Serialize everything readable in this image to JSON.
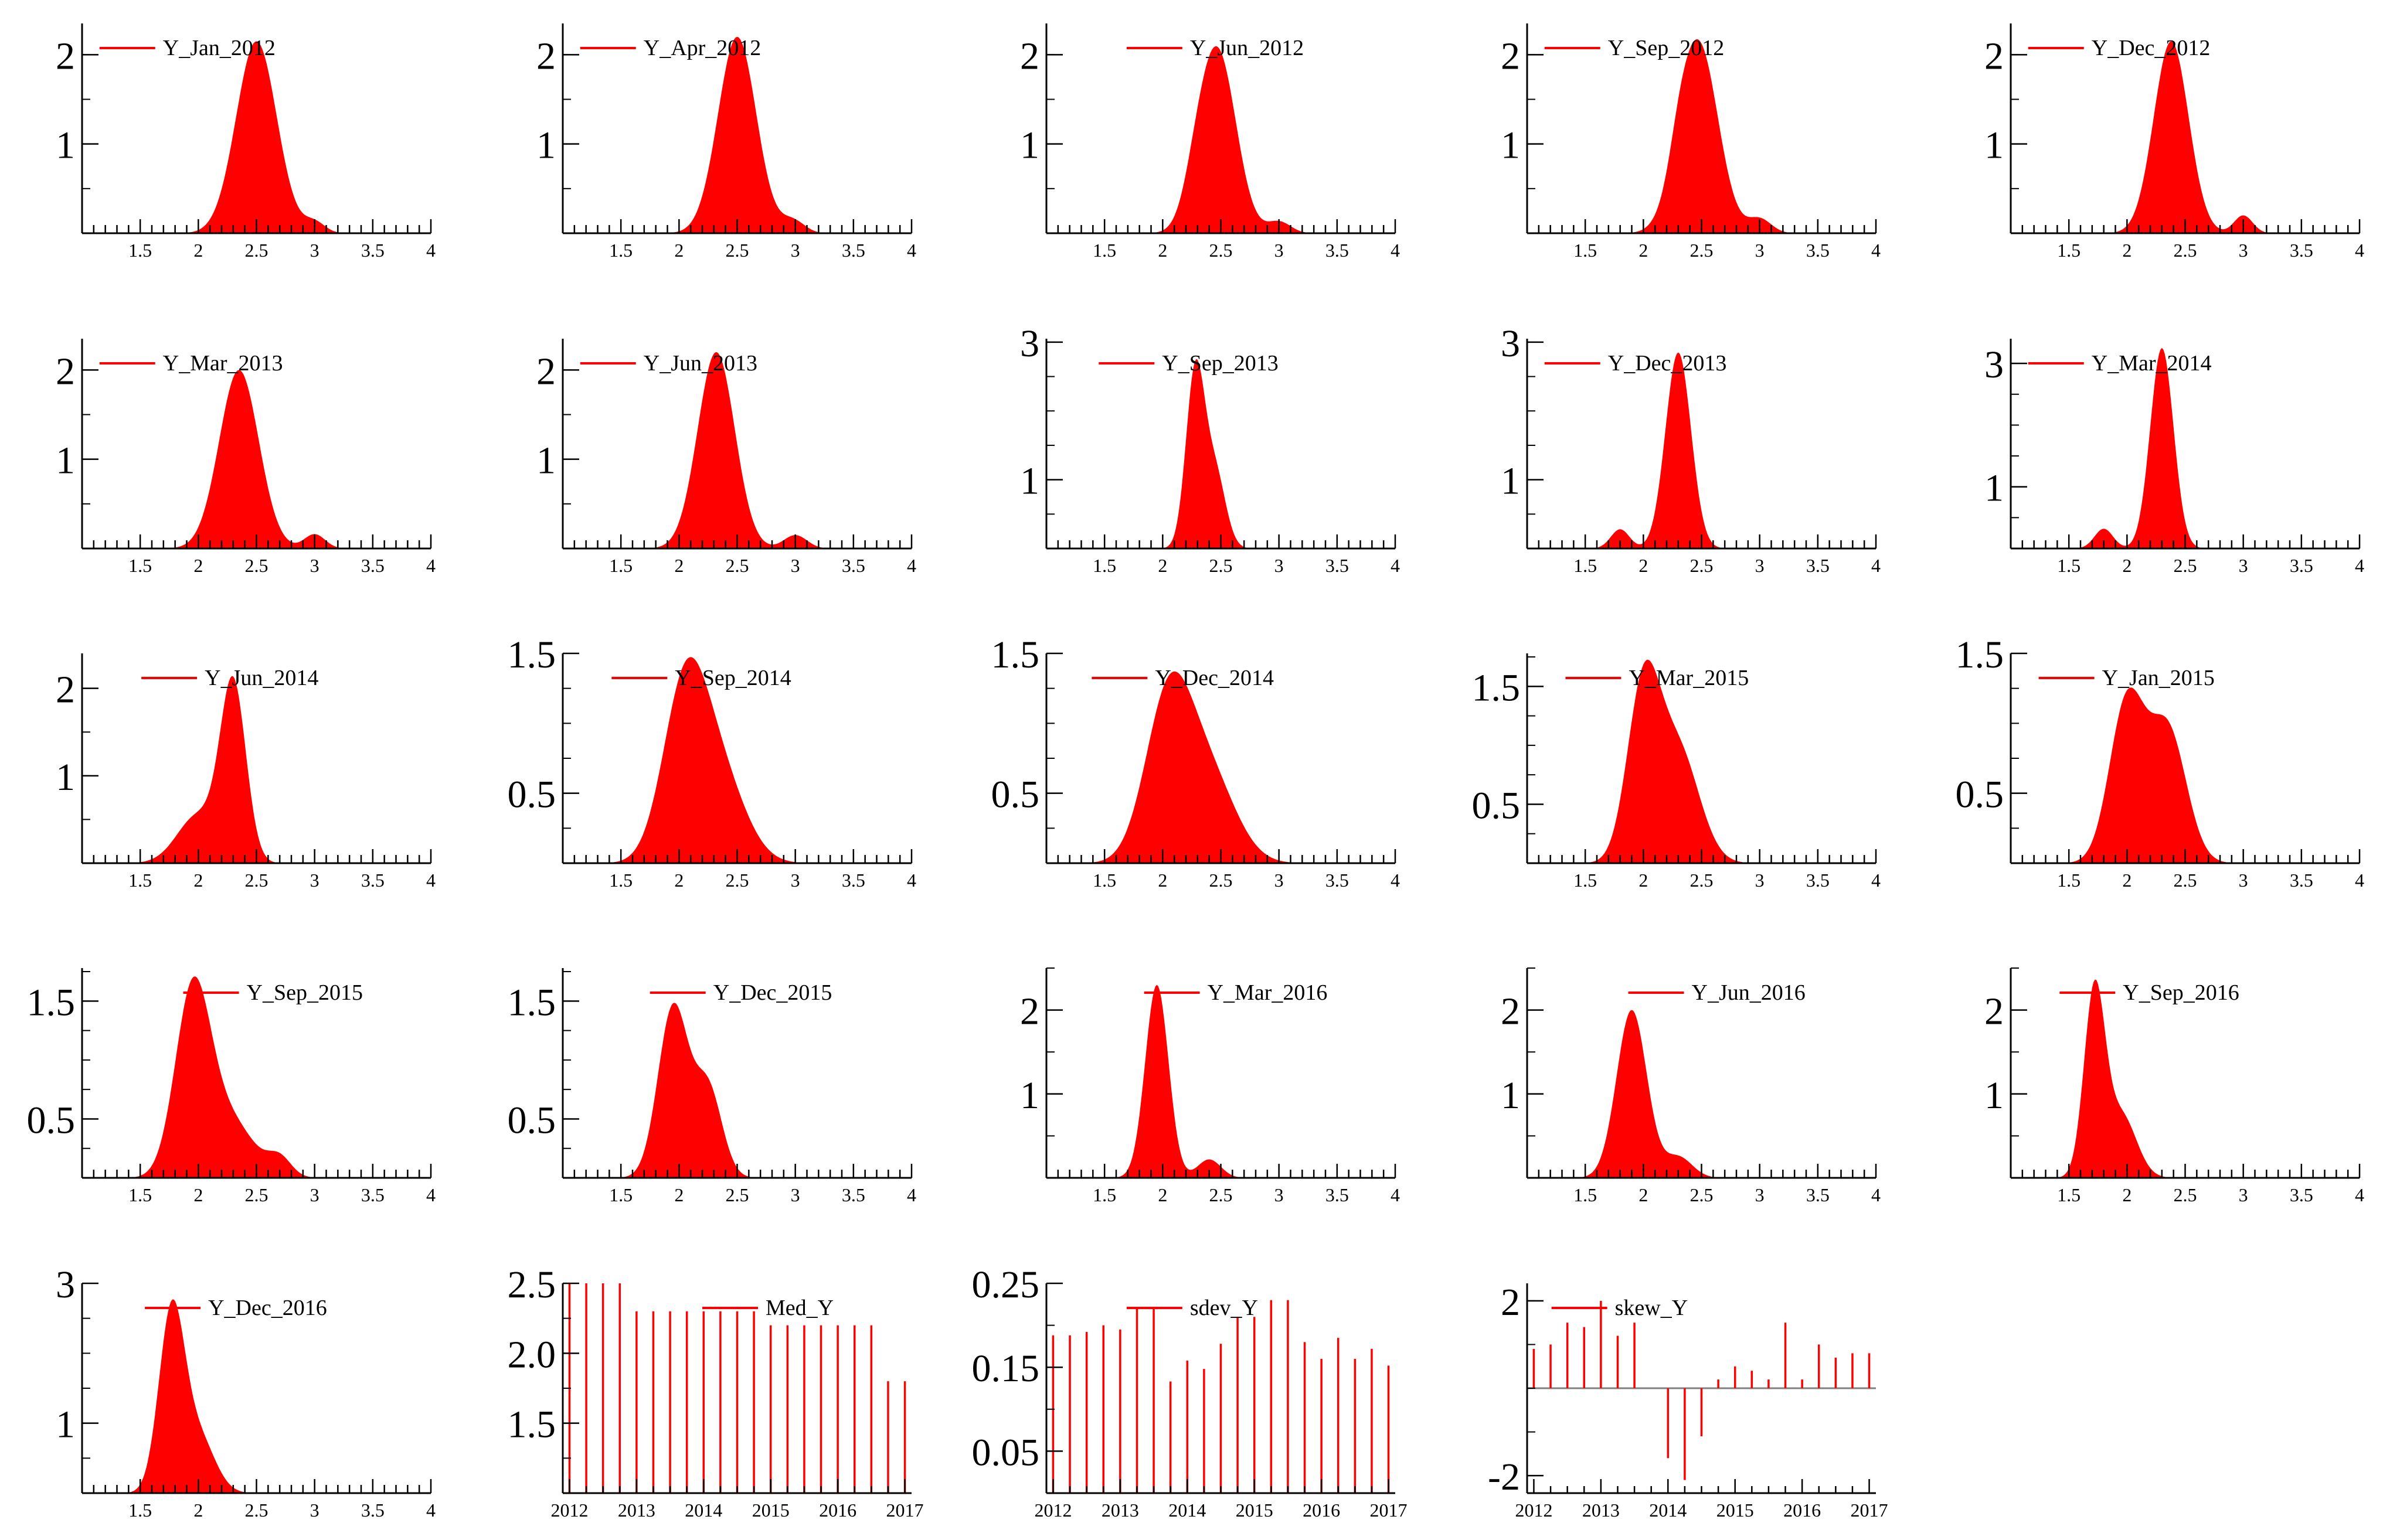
{
  "colors": {
    "series": "#ff0000",
    "axis": "#000000",
    "zero_line": "#808080"
  },
  "chart_data": [
    {
      "type": "area",
      "title": "Y_Jan_2012",
      "legend": "Y_Jan_2012",
      "xlim": [
        1,
        4
      ],
      "ylim": [
        0,
        2.35
      ],
      "xticks": [
        1.5,
        2,
        2.5,
        3,
        3.5,
        4
      ],
      "yticks": [
        1,
        2
      ],
      "ytick_labels": [
        "1",
        "2"
      ],
      "components": [
        {
          "mu": 2.5,
          "sd": 0.175,
          "peak": 2.15
        },
        {
          "mu": 3.0,
          "sd": 0.09,
          "peak": 0.12
        }
      ]
    },
    {
      "type": "area",
      "title": "Y_Apr_2012",
      "legend": "Y_Apr_2012",
      "xlim": [
        1,
        4
      ],
      "ylim": [
        0,
        2.35
      ],
      "xticks": [
        1.5,
        2,
        2.5,
        3,
        3.5,
        4
      ],
      "yticks": [
        1,
        2
      ],
      "ytick_labels": [
        "1",
        "2"
      ],
      "components": [
        {
          "mu": 2.5,
          "sd": 0.165,
          "peak": 2.2
        },
        {
          "mu": 2.98,
          "sd": 0.1,
          "peak": 0.14
        }
      ]
    },
    {
      "type": "area",
      "title": "Y_Jun_2012",
      "legend": "Y_Jun_2012",
      "xlim": [
        1,
        4
      ],
      "ylim": [
        0,
        2.35
      ],
      "xticks": [
        1.5,
        2,
        2.5,
        3,
        3.5,
        4
      ],
      "yticks": [
        1,
        2
      ],
      "ytick_labels": [
        "1",
        "2"
      ],
      "components": [
        {
          "mu": 2.47,
          "sd": 0.16,
          "peak": 2.05
        },
        {
          "mu": 2.28,
          "sd": 0.1,
          "peak": 0.25
        },
        {
          "mu": 3.0,
          "sd": 0.1,
          "peak": 0.13
        }
      ]
    },
    {
      "type": "area",
      "title": "Y_Sep_2012",
      "legend": "Y_Sep_2012",
      "xlim": [
        1,
        4
      ],
      "ylim": [
        0,
        2.35
      ],
      "xticks": [
        1.5,
        2,
        2.5,
        3,
        3.5,
        4
      ],
      "yticks": [
        1,
        2
      ],
      "ytick_labels": [
        "1",
        "2"
      ],
      "components": [
        {
          "mu": 2.47,
          "sd": 0.17,
          "peak": 2.15
        },
        {
          "mu": 2.3,
          "sd": 0.08,
          "peak": 0.2
        },
        {
          "mu": 3.0,
          "sd": 0.1,
          "peak": 0.16
        }
      ]
    },
    {
      "type": "area",
      "title": "Y_Dec_2012",
      "legend": "Y_Dec_2012",
      "xlim": [
        1,
        4
      ],
      "ylim": [
        0,
        2.35
      ],
      "xticks": [
        1.5,
        2,
        2.5,
        3,
        3.5,
        4
      ],
      "yticks": [
        1,
        2
      ],
      "ytick_labels": [
        "1",
        "2"
      ],
      "components": [
        {
          "mu": 2.38,
          "sd": 0.15,
          "peak": 2.15
        },
        {
          "mu": 3.0,
          "sd": 0.08,
          "peak": 0.2
        }
      ]
    },
    {
      "type": "area",
      "title": "Y_Mar_2013",
      "legend": "Y_Mar_2013",
      "xlim": [
        1,
        4
      ],
      "ylim": [
        0,
        2.35
      ],
      "xticks": [
        1.5,
        2,
        2.5,
        3,
        3.5,
        4
      ],
      "yticks": [
        1,
        2
      ],
      "ytick_labels": [
        "1",
        "2"
      ],
      "components": [
        {
          "mu": 2.35,
          "sd": 0.17,
          "peak": 2.0
        },
        {
          "mu": 3.0,
          "sd": 0.09,
          "peak": 0.16
        }
      ]
    },
    {
      "type": "area",
      "title": "Y_Jun_2013",
      "legend": "Y_Jun_2013",
      "xlim": [
        1,
        4
      ],
      "ylim": [
        0,
        2.35
      ],
      "xticks": [
        1.5,
        2,
        2.5,
        3,
        3.5,
        4
      ],
      "yticks": [
        1,
        2
      ],
      "ytick_labels": [
        "1",
        "2"
      ],
      "components": [
        {
          "mu": 2.32,
          "sd": 0.16,
          "peak": 2.2
        },
        {
          "mu": 3.0,
          "sd": 0.1,
          "peak": 0.15
        }
      ]
    },
    {
      "type": "area",
      "title": "Y_Sep_2013",
      "legend": "Y_Sep_2013",
      "xlim": [
        1,
        4
      ],
      "ylim": [
        0,
        3.05
      ],
      "xticks": [
        1.5,
        2,
        2.5,
        3,
        3.5,
        4
      ],
      "yticks": [
        1,
        3
      ],
      "ytick_labels": [
        "1",
        "3"
      ],
      "components": [
        {
          "mu": 2.28,
          "sd": 0.08,
          "peak": 2.55
        },
        {
          "mu": 2.45,
          "sd": 0.09,
          "peak": 1.1
        }
      ]
    },
    {
      "type": "area",
      "title": "Y_Dec_2013",
      "legend": "Y_Dec_2013",
      "xlim": [
        1,
        4
      ],
      "ylim": [
        0,
        3.05
      ],
      "xticks": [
        1.5,
        2,
        2.5,
        3,
        3.5,
        4
      ],
      "yticks": [
        1,
        3
      ],
      "ytick_labels": [
        "1",
        "3"
      ],
      "components": [
        {
          "mu": 2.3,
          "sd": 0.11,
          "peak": 2.85
        },
        {
          "mu": 1.8,
          "sd": 0.08,
          "peak": 0.28
        }
      ]
    },
    {
      "type": "area",
      "title": "Y_Mar_2014",
      "legend": "Y_Mar_2014",
      "xlim": [
        1,
        4
      ],
      "ylim": [
        0,
        3.4
      ],
      "xticks": [
        1.5,
        2,
        2.5,
        3,
        3.5,
        4
      ],
      "yticks": [
        1,
        3
      ],
      "ytick_labels": [
        "1",
        "3"
      ],
      "components": [
        {
          "mu": 2.3,
          "sd": 0.1,
          "peak": 3.25
        },
        {
          "mu": 1.8,
          "sd": 0.08,
          "peak": 0.32
        }
      ]
    },
    {
      "type": "area",
      "title": "Y_Jun_2014",
      "legend": "Y_Jun_2014",
      "xlim": [
        1,
        4
      ],
      "ylim": [
        0,
        2.4
      ],
      "xticks": [
        1.5,
        2,
        2.5,
        3,
        3.5,
        4
      ],
      "yticks": [
        1,
        2
      ],
      "ytick_labels": [
        "1",
        "2"
      ],
      "components": [
        {
          "mu": 2.3,
          "sd": 0.11,
          "peak": 2.0
        },
        {
          "mu": 2.0,
          "sd": 0.18,
          "peak": 0.55
        }
      ]
    },
    {
      "type": "area",
      "title": "Y_Sep_2014",
      "legend": "Y_Sep_2014",
      "xlim": [
        1,
        4
      ],
      "ylim": [
        0,
        1.5
      ],
      "xticks": [
        1.5,
        2,
        2.5,
        3,
        3.5,
        4
      ],
      "yticks": [
        0.5,
        1.5
      ],
      "ytick_labels": [
        "0.5",
        "1.5"
      ],
      "components": [
        {
          "mu": 2.05,
          "sd": 0.19,
          "peak": 1.2
        },
        {
          "mu": 2.35,
          "sd": 0.22,
          "peak": 0.6
        }
      ]
    },
    {
      "type": "area",
      "title": "Y_Dec_2014",
      "legend": "Y_Dec_2014",
      "xlim": [
        1,
        4
      ],
      "ylim": [
        0,
        1.5
      ],
      "xticks": [
        1.5,
        2,
        2.5,
        3,
        3.5,
        4
      ],
      "yticks": [
        0.5,
        1.5
      ],
      "ytick_labels": [
        "0.5",
        "1.5"
      ],
      "components": [
        {
          "mu": 2.05,
          "sd": 0.2,
          "peak": 1.15
        },
        {
          "mu": 2.4,
          "sd": 0.23,
          "peak": 0.6
        }
      ]
    },
    {
      "type": "area",
      "title": "Y_Mar_2015",
      "legend": "Y_Mar_2015",
      "xlim": [
        1,
        4
      ],
      "ylim": [
        0,
        1.78
      ],
      "xticks": [
        1.5,
        2,
        2.5,
        3,
        3.5,
        4
      ],
      "yticks": [
        0.5,
        1.5
      ],
      "ytick_labels": [
        "0.5",
        "1.5"
      ],
      "components": [
        {
          "mu": 2.0,
          "sd": 0.14,
          "peak": 1.45
        },
        {
          "mu": 2.3,
          "sd": 0.18,
          "peak": 0.95
        }
      ]
    },
    {
      "type": "area",
      "title": "Y_Jan_2015",
      "legend": "Y_Jan_2015",
      "xlim": [
        1,
        4
      ],
      "ylim": [
        0,
        1.5
      ],
      "xticks": [
        1.5,
        2,
        2.5,
        3,
        3.5,
        4
      ],
      "yticks": [
        0.5,
        1.5
      ],
      "ytick_labels": [
        "0.5",
        "1.5"
      ],
      "components": [
        {
          "mu": 2.0,
          "sd": 0.15,
          "peak": 1.15
        },
        {
          "mu": 2.35,
          "sd": 0.16,
          "peak": 0.95
        }
      ]
    },
    {
      "type": "area",
      "title": "Y_Sep_2015",
      "legend": "Y_Sep_2015",
      "xlim": [
        1,
        4
      ],
      "ylim": [
        0,
        1.78
      ],
      "xticks": [
        1.5,
        2,
        2.5,
        3,
        3.5,
        4
      ],
      "yticks": [
        0.5,
        1.5
      ],
      "ytick_labels": [
        "0.5",
        "1.5"
      ],
      "components": [
        {
          "mu": 1.95,
          "sd": 0.15,
          "peak": 1.5
        },
        {
          "mu": 2.25,
          "sd": 0.22,
          "peak": 0.5
        },
        {
          "mu": 2.7,
          "sd": 0.1,
          "peak": 0.15
        }
      ]
    },
    {
      "type": "area",
      "title": "Y_Dec_2015",
      "legend": "Y_Dec_2015",
      "xlim": [
        1,
        4
      ],
      "ylim": [
        0,
        1.78
      ],
      "xticks": [
        1.5,
        2,
        2.5,
        3,
        3.5,
        4
      ],
      "yticks": [
        0.5,
        1.5
      ],
      "ytick_labels": [
        "0.5",
        "1.5"
      ],
      "components": [
        {
          "mu": 1.95,
          "sd": 0.13,
          "peak": 1.45
        },
        {
          "mu": 2.25,
          "sd": 0.12,
          "peak": 0.75
        }
      ]
    },
    {
      "type": "area",
      "title": "Y_Mar_2016",
      "legend": "Y_Mar_2016",
      "xlim": [
        1,
        4
      ],
      "ylim": [
        0,
        2.5
      ],
      "xticks": [
        1.5,
        2,
        2.5,
        3,
        3.5,
        4
      ],
      "yticks": [
        1,
        2
      ],
      "ytick_labels": [
        "1",
        "2"
      ],
      "components": [
        {
          "mu": 1.95,
          "sd": 0.1,
          "peak": 2.3
        },
        {
          "mu": 2.4,
          "sd": 0.1,
          "peak": 0.22
        }
      ]
    },
    {
      "type": "area",
      "title": "Y_Jun_2016",
      "legend": "Y_Jun_2016",
      "xlim": [
        1,
        4
      ],
      "ylim": [
        0,
        2.5
      ],
      "xticks": [
        1.5,
        2,
        2.5,
        3,
        3.5,
        4
      ],
      "yticks": [
        1,
        2
      ],
      "ytick_labels": [
        "1",
        "2"
      ],
      "components": [
        {
          "mu": 1.9,
          "sd": 0.13,
          "peak": 2.0
        },
        {
          "mu": 2.3,
          "sd": 0.12,
          "peak": 0.25
        }
      ]
    },
    {
      "type": "area",
      "title": "Y_Sep_2016",
      "legend": "Y_Sep_2016",
      "xlim": [
        1,
        4
      ],
      "ylim": [
        0,
        2.5
      ],
      "xticks": [
        1.5,
        2,
        2.5,
        3,
        3.5,
        4
      ],
      "yticks": [
        1,
        2
      ],
      "ytick_labels": [
        "1",
        "2"
      ],
      "components": [
        {
          "mu": 1.72,
          "sd": 0.09,
          "peak": 2.2
        },
        {
          "mu": 1.95,
          "sd": 0.13,
          "peak": 0.75
        }
      ]
    },
    {
      "type": "area",
      "title": "Y_Dec_2016",
      "legend": "Y_Dec_2016",
      "xlim": [
        1,
        4
      ],
      "ylim": [
        0,
        3.0
      ],
      "xticks": [
        1.5,
        2,
        2.5,
        3,
        3.5,
        4
      ],
      "yticks": [
        1,
        3
      ],
      "ytick_labels": [
        "1",
        "3"
      ],
      "components": [
        {
          "mu": 1.77,
          "sd": 0.11,
          "peak": 2.55
        },
        {
          "mu": 2.0,
          "sd": 0.14,
          "peak": 0.8
        }
      ]
    },
    {
      "type": "bar",
      "title": "Med_Y",
      "legend": "Med_Y",
      "xlim": [
        2011.9,
        2017.1
      ],
      "ylim": [
        1.0,
        2.5
      ],
      "xticks": [
        2012,
        2013,
        2014,
        2015,
        2016,
        2017
      ],
      "yticks": [
        1.5,
        2.0,
        2.5
      ],
      "ytick_labels": [
        "1.5",
        "2.0",
        "2.5"
      ],
      "x": [
        2012,
        2012.25,
        2012.5,
        2012.75,
        2013,
        2013.25,
        2013.5,
        2013.75,
        2014,
        2014.25,
        2014.5,
        2014.75,
        2015,
        2015.25,
        2015.5,
        2015.75,
        2016,
        2016.25,
        2016.5,
        2016.75,
        2017
      ],
      "values": [
        2.5,
        2.5,
        2.5,
        2.5,
        2.3,
        2.3,
        2.3,
        2.3,
        2.3,
        2.3,
        2.3,
        2.3,
        2.2,
        2.2,
        2.2,
        2.2,
        2.2,
        2.2,
        2.2,
        1.8,
        1.8
      ]
    },
    {
      "type": "bar",
      "title": "sdev_Y",
      "legend": "sdev_Y",
      "xlim": [
        2011.9,
        2017.1
      ],
      "ylim": [
        0,
        0.25
      ],
      "xticks": [
        2012,
        2013,
        2014,
        2015,
        2016,
        2017
      ],
      "yticks": [
        0.05,
        0.15,
        0.25
      ],
      "ytick_labels": [
        "0.05",
        "0.15",
        "0.25"
      ],
      "x": [
        2012,
        2012.25,
        2012.5,
        2012.75,
        2013,
        2013.25,
        2013.5,
        2013.75,
        2014,
        2014.25,
        2014.5,
        2014.75,
        2015,
        2015.25,
        2015.5,
        2015.75,
        2016,
        2016.25,
        2016.5,
        2016.75,
        2017
      ],
      "values": [
        0.188,
        0.188,
        0.192,
        0.2,
        0.195,
        0.22,
        0.22,
        0.133,
        0.158,
        0.148,
        0.178,
        0.21,
        0.21,
        0.23,
        0.23,
        0.18,
        0.16,
        0.185,
        0.16,
        0.172,
        0.152
      ]
    },
    {
      "type": "bar",
      "title": "skew_Y",
      "legend": "skew_Y",
      "xlim": [
        2011.9,
        2017.1
      ],
      "ylim": [
        -2.4,
        2.4
      ],
      "xticks": [
        2012,
        2013,
        2014,
        2015,
        2016,
        2017
      ],
      "yticks": [
        -2,
        2
      ],
      "ytick_labels": [
        "-2",
        "2"
      ],
      "zero_line": true,
      "x": [
        2012,
        2012.25,
        2012.5,
        2012.75,
        2013,
        2013.25,
        2013.5,
        2013.75,
        2014,
        2014.25,
        2014.5,
        2014.75,
        2015,
        2015.25,
        2015.5,
        2015.75,
        2016,
        2016.25,
        2016.5,
        2016.75,
        2017
      ],
      "values": [
        0.9,
        1.0,
        1.5,
        1.4,
        2.0,
        1.2,
        1.5,
        0.0,
        -1.6,
        -2.1,
        -1.1,
        0.2,
        0.5,
        0.4,
        0.2,
        1.5,
        0.2,
        1.0,
        0.7,
        0.8,
        0.8
      ]
    }
  ]
}
